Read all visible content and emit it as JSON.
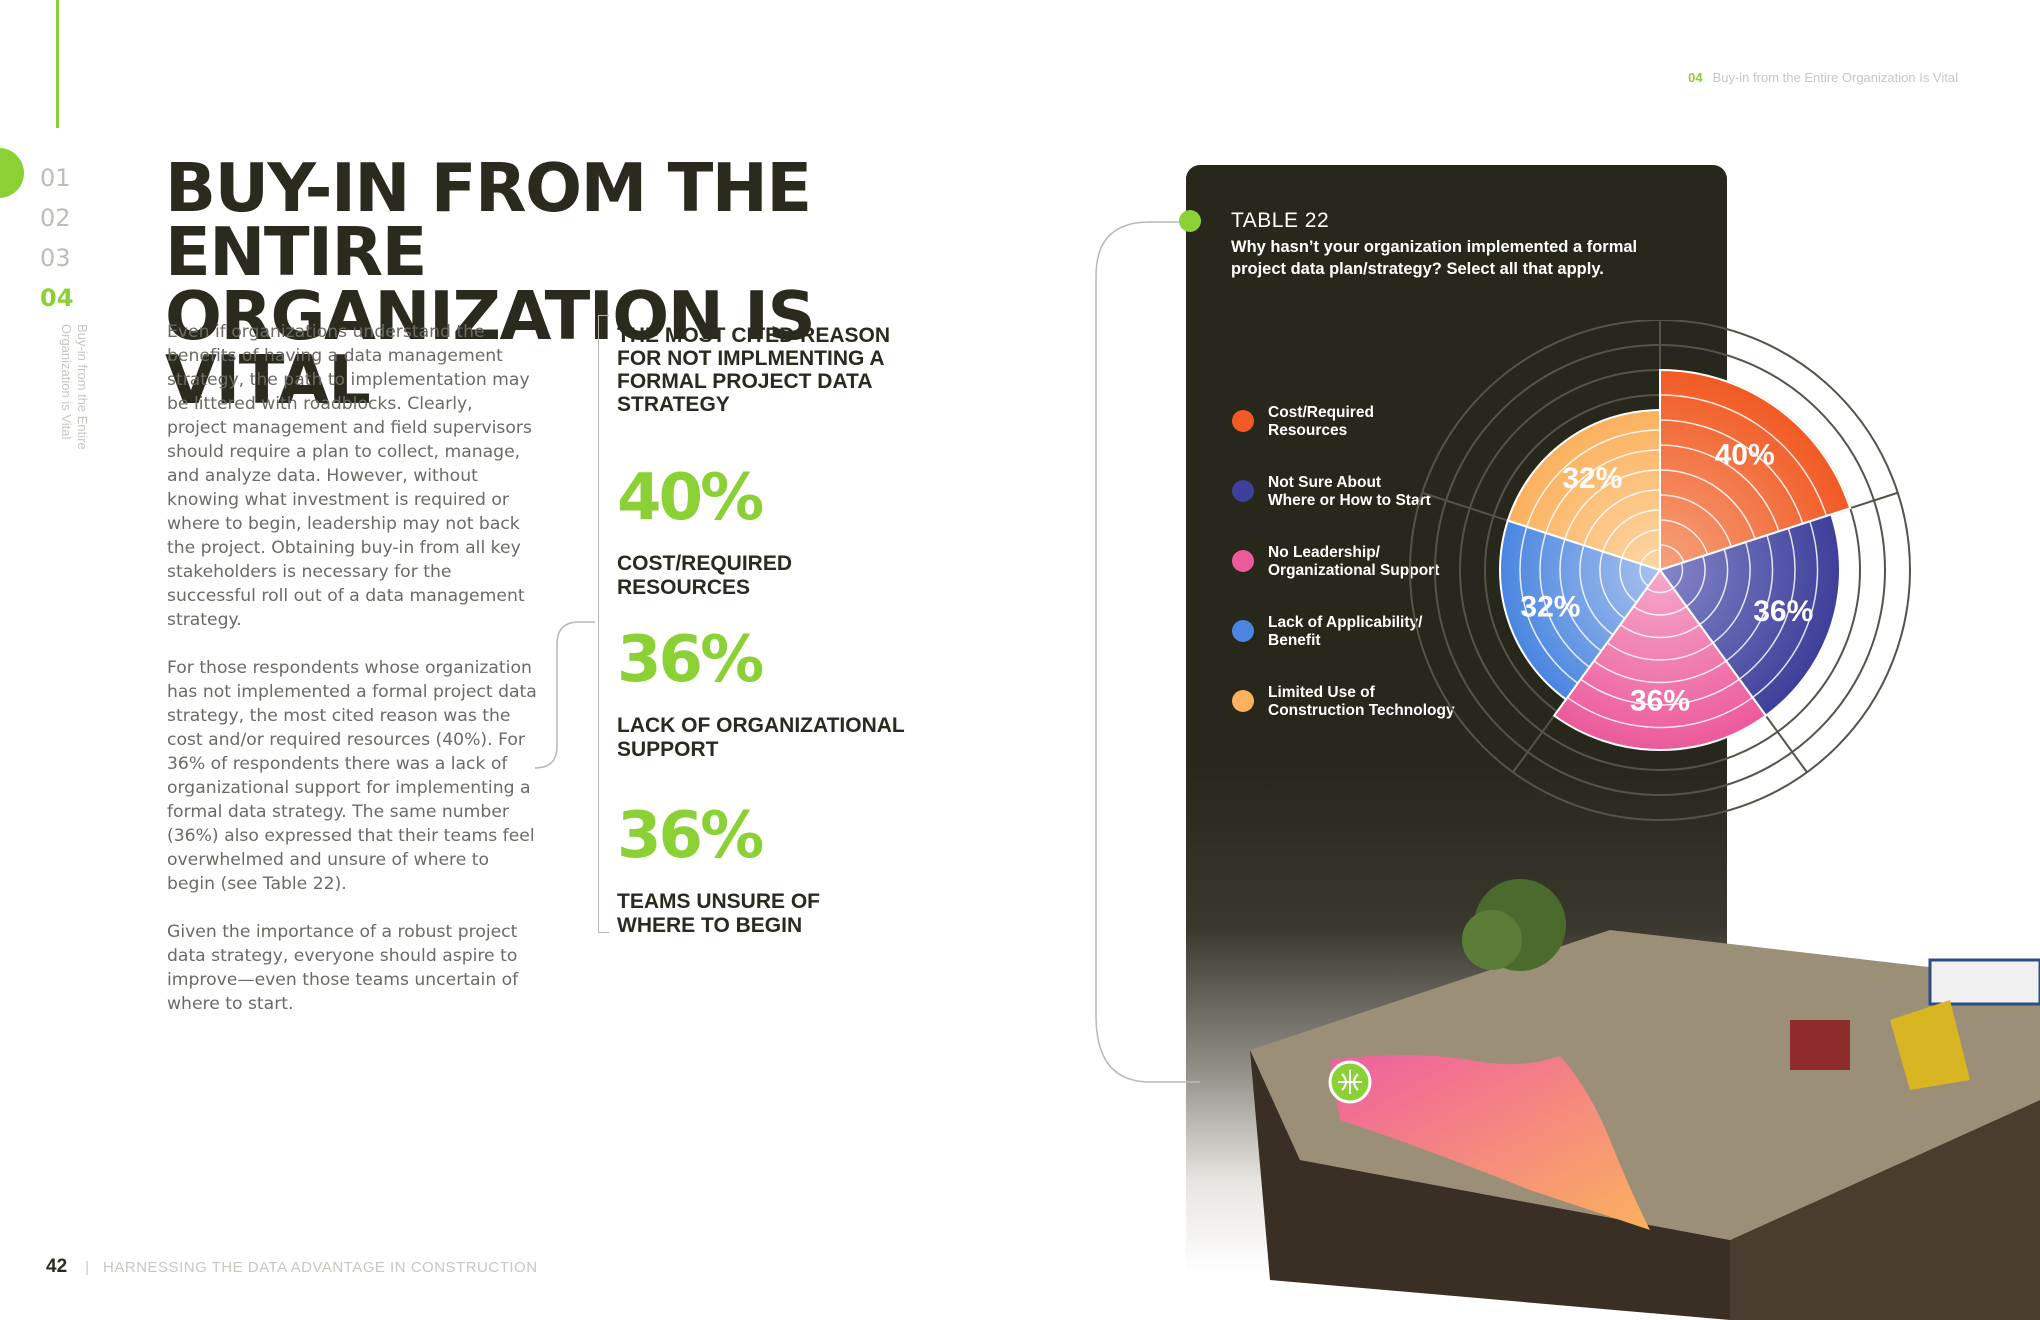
{
  "nav": {
    "items": [
      {
        "label": "01",
        "active": false
      },
      {
        "label": "02",
        "active": false
      },
      {
        "label": "03",
        "active": false
      },
      {
        "label": "04",
        "active": true
      }
    ],
    "section_vertical": "Buy-in from the Entire Organization is Vital"
  },
  "header_ref": {
    "number": "04",
    "text": "Buy-in from the Entire Organization Is Vital"
  },
  "title": {
    "line1": "BUY-IN FROM THE ENTIRE",
    "line2": "ORGANIZATION IS VITAL"
  },
  "body": {
    "p1": "Even if organizations understand the benefits of having a data management strategy, the path to implementation may be littered with roadblocks. Clearly, project management and field supervisors should require a plan to collect, manage, and analyze data. However, without knowing what investment is required or where to begin, leadership may not back the project. Obtaining buy-in from all key stakeholders is necessary for the successful roll out of a data management strategy.",
    "p2": "For those respondents whose organization has not implemented a formal project data strategy, the most cited reason was the cost and/or required resources (40%). For 36% of respondents there was a lack of organizational support for implementing a formal data strategy. The same number (36%) also expressed that their teams feel overwhelmed and unsure of where to begin (see Table 22).",
    "p3": "Given the importance of a robust project data strategy, everyone should aspire to improve—even those teams uncertain of where to start."
  },
  "stats": {
    "heading": "THE MOST CITED REASON FOR NOT IMPLMENTING A FORMAL PROJECT DATA STRATEGY",
    "items": [
      {
        "value": "40%",
        "label_line1": "COST/REQUIRED",
        "label_line2": "RESOURCES"
      },
      {
        "value": "36%",
        "label_line1": "LACK OF ORGANIZATIONAL",
        "label_line2": "SUPPORT"
      },
      {
        "value": "36%",
        "label_line1": "TEAMS UNSURE OF",
        "label_line2": "WHERE TO BEGIN"
      }
    ]
  },
  "table": {
    "label": "TABLE 22",
    "question": "Why hasn’t your organization implemented a formal project data plan/strategy? Select all that apply."
  },
  "chart_data": {
    "type": "pie",
    "subtype": "polar-area",
    "legend_position": "left",
    "series": [
      {
        "label_line1": "Cost/Required",
        "label_line2": "Resources",
        "value": 40,
        "display": "40%",
        "color": "#f15a24",
        "color_light": "#f6a27c"
      },
      {
        "label_line1": "Not Sure About",
        "label_line2": "Where or How to Start",
        "value": 36,
        "display": "36%",
        "color": "#3d3f9a",
        "color_light": "#8586c9"
      },
      {
        "label_line1": "No Leadership/",
        "label_line2": "Organizational Support",
        "value": 36,
        "display": "36%",
        "color": "#ec5a9b",
        "color_light": "#f6a9cb"
      },
      {
        "label_line1": "Lack of Applicability/",
        "label_line2": "Benefit",
        "value": 32,
        "display": "32%",
        "color": "#4a86e0",
        "color_light": "#a9c2ee"
      },
      {
        "label_line1": "Limited Use of",
        "label_line2": "Construction Technology",
        "value": 32,
        "display": "32%",
        "color": "#fbb15e",
        "color_light": "#fdd7a6"
      }
    ]
  },
  "footer": {
    "page_number": "42",
    "publication": "HARNESSING THE DATA ADVANTAGE IN CONSTRUCTION"
  }
}
